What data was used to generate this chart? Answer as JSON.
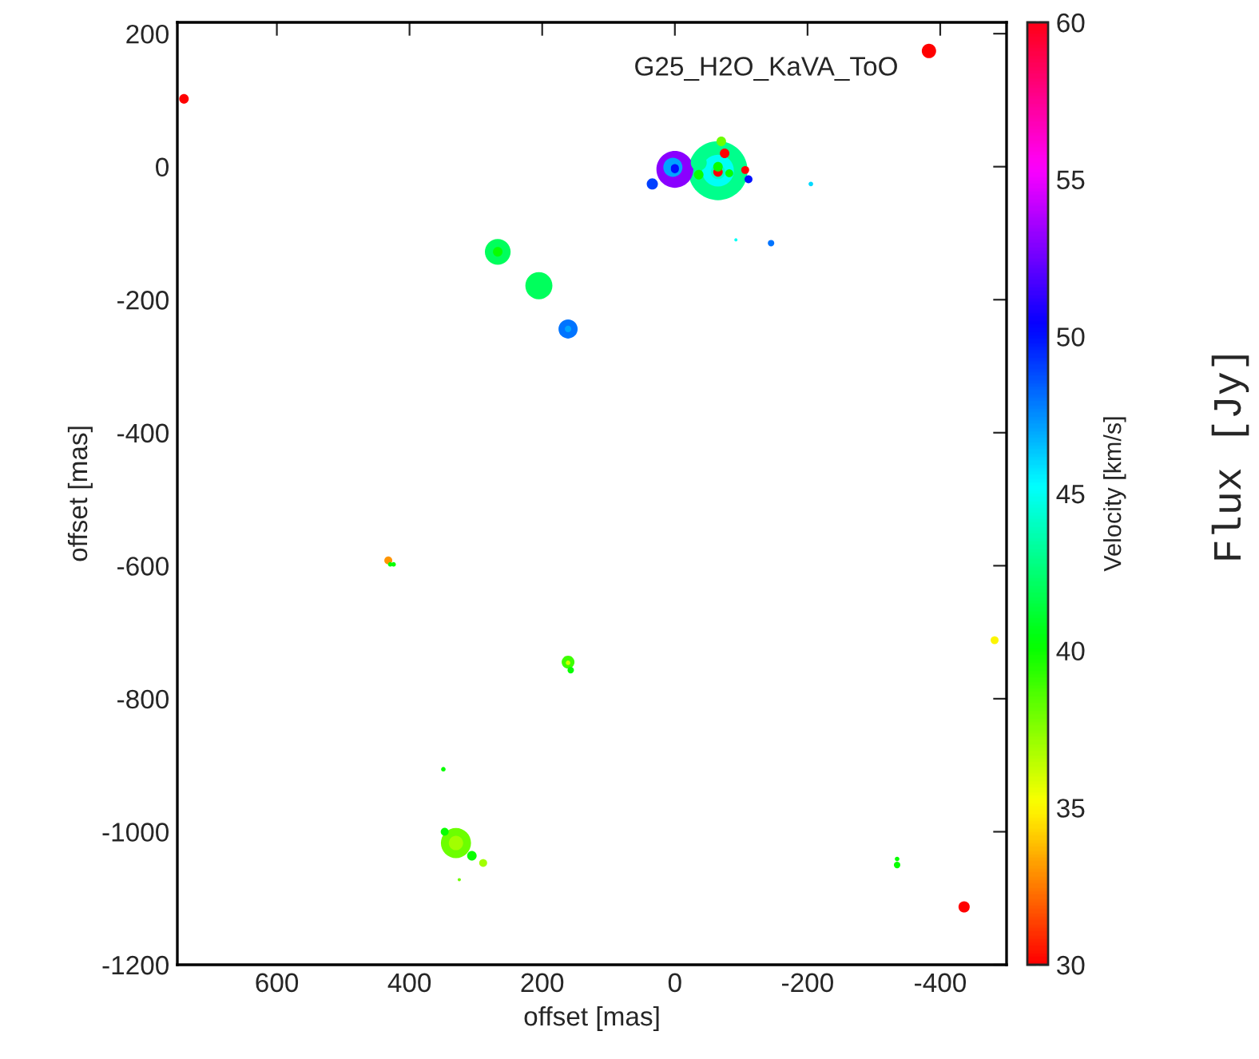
{
  "chart_data": {
    "type": "bubble",
    "title": "G25_H2O_KaVA_ToO",
    "xlabel": "offset [mas]",
    "ylabel": "offset [mas]",
    "clabel": "Velocity [km/s]",
    "annotations": [
      "Flux [Jy]"
    ],
    "x": [
      -65,
      0,
      -65,
      267,
      330,
      205,
      161,
      -36,
      -65,
      3,
      330,
      161,
      0,
      161,
      -70,
      267,
      -75,
      -65,
      -106,
      -111,
      34,
      306,
      740,
      -383,
      -436,
      432,
      -36,
      -82,
      429,
      347,
      289,
      157,
      -482,
      -65,
      -145,
      424,
      349,
      -335,
      -335,
      0,
      -205,
      325,
      -92,
      161
    ],
    "values": [
      -6,
      -4,
      -6,
      -128,
      -1017,
      -179,
      -244,
      6,
      -8,
      -1,
      -1017,
      -745,
      -4,
      -244,
      38,
      -128,
      20,
      -8,
      -5,
      -19,
      -26,
      -1036,
      102,
      174,
      -1113,
      -592,
      -12,
      -10,
      -598,
      -1000,
      -1047,
      -757,
      -712,
      0,
      -115,
      -598,
      -906,
      -1041,
      -1050,
      -2,
      -26,
      -1072,
      -110,
      -746
    ],
    "sizes": [
      1,
      0.39,
      0.29,
      0.19,
      0.26,
      0.21,
      0.105,
      0.073,
      0.059,
      0.105,
      0.059,
      0.047,
      0.018,
      0.012,
      0.026,
      0.026,
      0.026,
      0.026,
      0.018,
      0.018,
      0.036,
      0.026,
      0.026,
      0.059,
      0.036,
      0.018,
      0.026,
      0.018,
      0.006,
      0.018,
      0.018,
      0.012,
      0.018,
      0.026,
      0.012,
      0.006,
      0.006,
      0.006,
      0.012,
      0.018,
      0.006,
      0.003,
      0.003,
      0.006
    ],
    "cvalues": [
      43,
      53,
      45,
      42,
      38,
      42,
      48,
      43,
      44,
      47,
      37,
      39,
      50,
      47,
      38,
      40,
      30,
      30,
      30,
      50,
      49,
      40,
      30,
      30,
      30,
      33,
      40,
      40,
      40,
      40,
      37,
      40,
      35,
      40,
      48,
      40,
      40,
      40,
      40,
      50,
      46,
      38,
      45,
      36
    ],
    "xlim": [
      750,
      -500
    ],
    "xticks": [
      600,
      400,
      200,
      0,
      -200,
      -400
    ],
    "ylim": [
      -1200,
      217
    ],
    "yticks": [
      200,
      0,
      -200,
      -400,
      -600,
      -800,
      -1000,
      -1200
    ],
    "clim": [
      30,
      60
    ],
    "cticks": [
      30,
      35,
      40,
      45,
      50,
      55,
      60
    ],
    "grid": false,
    "legend": false
  }
}
